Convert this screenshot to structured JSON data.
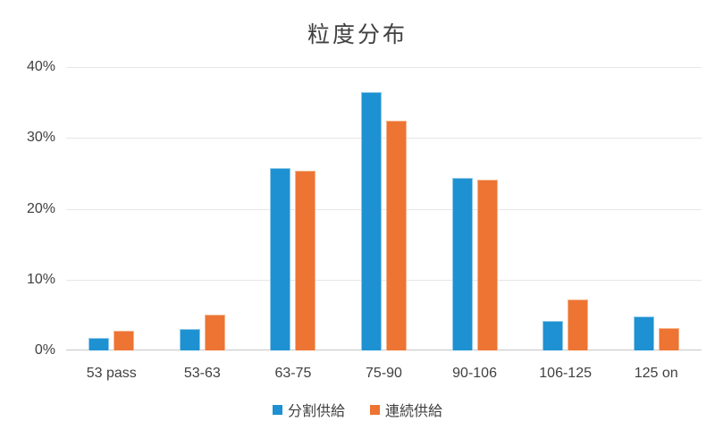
{
  "chart_data": {
    "type": "bar",
    "title": "粒度分布",
    "xlabel": "",
    "ylabel": "",
    "categories": [
      "53 pass",
      "53-63",
      "63-75",
      "75-90",
      "90-106",
      "106-125",
      "125 on"
    ],
    "series": [
      {
        "name": "分割供給",
        "color": "#1E91D2",
        "border_color": "#8EC8EA",
        "values": [
          1.8,
          3.0,
          25.8,
          36.5,
          24.3,
          4.2,
          4.8
        ]
      },
      {
        "name": "連続供給",
        "color": "#ED7433",
        "border_color": "#F6B38B",
        "values": [
          2.8,
          5.0,
          25.4,
          32.4,
          24.1,
          7.2,
          3.2
        ]
      }
    ],
    "ylim": [
      0,
      40
    ],
    "yticks": [
      {
        "value": 0,
        "label": "0%"
      },
      {
        "value": 10,
        "label": "10%"
      },
      {
        "value": 20,
        "label": "20%"
      },
      {
        "value": 30,
        "label": "30%"
      },
      {
        "value": 40,
        "label": "40%"
      }
    ],
    "grid": "horizontal",
    "gridline_color": "#E6E6E6",
    "axis_line_color": "#C6C6C6",
    "text_color": "#404040",
    "legend_position": "bottom"
  }
}
